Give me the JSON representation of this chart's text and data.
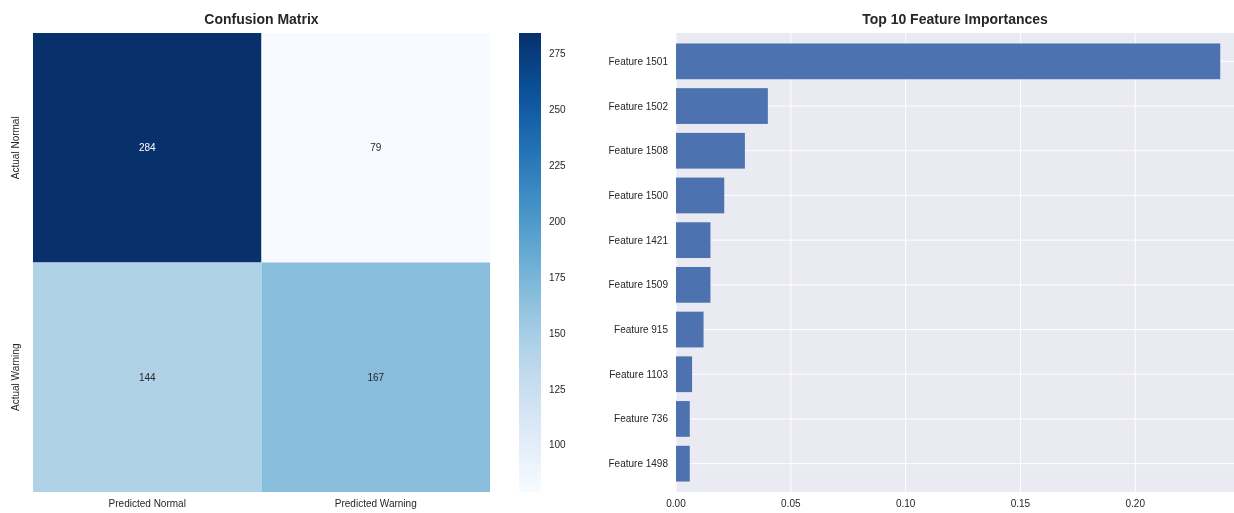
{
  "chart_data": [
    {
      "type": "heatmap",
      "title": "Confusion Matrix",
      "categories": [
        "Predicted Normal",
        "Predicted Warning"
      ],
      "y_categories": [
        "Actual Normal",
        "Actual Warning"
      ],
      "cells": [
        [
          284,
          79
        ],
        [
          144,
          167
        ]
      ],
      "data_labels": true,
      "clim": [
        79,
        284
      ],
      "cticks": [
        100,
        125,
        150,
        175,
        200,
        225,
        250,
        275
      ]
    },
    {
      "type": "bar",
      "title": "Top 10 Feature Importances",
      "orientation": "horizontal",
      "categories": [
        "Feature 1501",
        "Feature 1502",
        "Feature 1508",
        "Feature 1500",
        "Feature 1421",
        "Feature 1509",
        "Feature 915",
        "Feature 1103",
        "Feature 736",
        "Feature 1498"
      ],
      "values": [
        0.237,
        0.04,
        0.03,
        0.021,
        0.015,
        0.015,
        0.012,
        0.007,
        0.006,
        0.006
      ],
      "color": "#4c72b0",
      "xlim": [
        0,
        0.243
      ],
      "xticks": [
        {
          "value": 0,
          "label": "0.00"
        },
        {
          "value": 0.05,
          "label": "0.05"
        },
        {
          "value": 0.1,
          "label": "0.10"
        },
        {
          "value": 0.15,
          "label": "0.15"
        },
        {
          "value": 0.2,
          "label": "0.20"
        }
      ],
      "grid": true
    }
  ]
}
